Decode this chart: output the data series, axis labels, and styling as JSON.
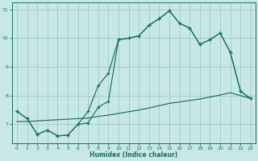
{
  "xlabel": "Humidex (Indice chaleur)",
  "xlim": [
    -0.5,
    23.5
  ],
  "ylim": [
    6.35,
    11.25
  ],
  "yticks": [
    7,
    8,
    9,
    10,
    11
  ],
  "xticks": [
    0,
    1,
    2,
    3,
    4,
    5,
    6,
    7,
    8,
    9,
    10,
    11,
    12,
    13,
    14,
    15,
    16,
    17,
    18,
    19,
    20,
    21,
    22,
    23
  ],
  "bg_color": "#c8e8e8",
  "grid_color": "#a0c8c8",
  "line_color": "#1a6e60",
  "line1_x": [
    0,
    1,
    2,
    3,
    4,
    5,
    6,
    7,
    8,
    9,
    10,
    11,
    12,
    13,
    14,
    15,
    16,
    17,
    18,
    19,
    20,
    21,
    22,
    23
  ],
  "line1_y": [
    7.45,
    7.2,
    6.65,
    6.8,
    6.6,
    6.62,
    7.0,
    7.45,
    8.35,
    8.78,
    9.95,
    10.0,
    10.08,
    10.45,
    10.68,
    10.95,
    10.52,
    10.35,
    9.78,
    9.95,
    10.18,
    9.5,
    8.15,
    7.9
  ],
  "line2_x": [
    0,
    1,
    2,
    3,
    4,
    5,
    6,
    7,
    8,
    9,
    10,
    11,
    12,
    13,
    14,
    15,
    16,
    17,
    18,
    19,
    20,
    21,
    22,
    23
  ],
  "line2_y": [
    7.45,
    7.2,
    6.65,
    6.8,
    6.6,
    6.62,
    7.0,
    7.05,
    7.6,
    7.8,
    9.95,
    10.0,
    10.08,
    10.45,
    10.68,
    10.95,
    10.52,
    10.35,
    9.78,
    9.95,
    10.18,
    9.5,
    8.15,
    7.9
  ],
  "line3_x": [
    0,
    1,
    2,
    3,
    4,
    5,
    6,
    7,
    8,
    9,
    10,
    11,
    12,
    13,
    14,
    15,
    16,
    17,
    18,
    19,
    20,
    21,
    22,
    23
  ],
  "line3_y": [
    7.1,
    7.1,
    7.12,
    7.14,
    7.16,
    7.18,
    7.2,
    7.22,
    7.28,
    7.32,
    7.38,
    7.44,
    7.5,
    7.57,
    7.65,
    7.73,
    7.78,
    7.83,
    7.88,
    7.95,
    8.02,
    8.1,
    8.0,
    7.9
  ]
}
